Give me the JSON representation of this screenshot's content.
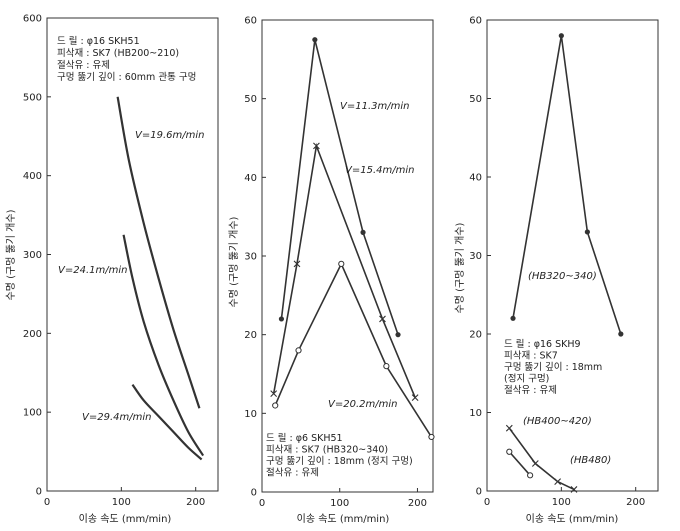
{
  "chart_data": [
    {
      "type": "line",
      "ylabel": "수명 (구멍 뚫기 개수)",
      "xlabel": "이송 속도 (mm/min)",
      "xlim": [
        0,
        230
      ],
      "ylim": [
        0,
        600
      ],
      "xticks": [
        "0",
        "100",
        "200"
      ],
      "yticks": [
        "0",
        "100",
        "200",
        "300",
        "400",
        "500",
        "600"
      ],
      "notes": [
        "드   릴 : φ16 SKH51",
        "피삭재 : SK7 (HB200~210)",
        "절삭유 : 유제",
        "구멍 뚫기 깊이 : 60mm 관통 구멍"
      ],
      "series": [
        {
          "name": "V=19.6m/min",
          "x": [
            95,
            110,
            130,
            150,
            170,
            190,
            205
          ],
          "y": [
            500,
            420,
            340,
            270,
            205,
            148,
            105
          ]
        },
        {
          "name": "V=24.1m/min",
          "x": [
            103,
            115,
            130,
            150,
            170,
            190,
            210
          ],
          "y": [
            325,
            270,
            215,
            160,
            115,
            75,
            45
          ]
        },
        {
          "name": "V=29.4m/min",
          "x": [
            115,
            130,
            150,
            170,
            190,
            208
          ],
          "y": [
            135,
            115,
            95,
            75,
            55,
            40
          ]
        }
      ]
    },
    {
      "type": "line",
      "ylabel": "수명 (구멍 뚫기 개수)",
      "xlabel": "이송 속도 (mm/min)",
      "xlim": [
        0,
        220
      ],
      "ylim": [
        0,
        60
      ],
      "xticks": [
        "0",
        "100",
        "200"
      ],
      "yticks": [
        "0",
        "10",
        "20",
        "30",
        "40",
        "50",
        "60"
      ],
      "notes": [
        "드   릴 : φ6 SKH51",
        "피삭재 : SK7 (HB320~340)",
        "구멍 뚫기 깊이 : 18mm (정지 구멍)",
        "절삭유 : 유제"
      ],
      "series": [
        {
          "name": "V=11.3m/min",
          "marker": "dot",
          "x": [
            25,
            68,
            130,
            175
          ],
          "y": [
            22,
            57.5,
            33,
            20
          ]
        },
        {
          "name": "V=15.4m/min",
          "marker": "x",
          "x": [
            15,
            45,
            70,
            155,
            197
          ],
          "y": [
            12.5,
            29,
            44,
            22,
            12
          ]
        },
        {
          "name": "V=20.2m/min",
          "marker": "circle",
          "x": [
            17,
            47,
            102,
            160,
            218
          ],
          "y": [
            11,
            18,
            29,
            16,
            7
          ]
        }
      ]
    },
    {
      "type": "line",
      "ylabel": "수명 (구멍 뚫기 개수)",
      "xlabel": "이송 속도 (mm/min)",
      "xlim": [
        0,
        230
      ],
      "ylim": [
        0,
        60
      ],
      "xticks": [
        "0",
        "100",
        "200"
      ],
      "yticks": [
        "0",
        "10",
        "20",
        "30",
        "40",
        "50",
        "60"
      ],
      "notes": [
        "드   릴 : φ16 SKH9",
        "피삭재 : SK7",
        "구멍 뚫기 깊이 : 18mm",
        "(정지 구멍)",
        "절삭유 : 유제"
      ],
      "series": [
        {
          "name": "(HB320~340)",
          "marker": "dot",
          "x": [
            35,
            100,
            135,
            180
          ],
          "y": [
            22,
            58,
            33,
            20
          ]
        },
        {
          "name": "(HB400~420)",
          "marker": "x",
          "x": [
            30,
            65,
            95,
            117
          ],
          "y": [
            8,
            3.5,
            1.2,
            0.2
          ]
        },
        {
          "name": "(HB480)",
          "marker": "circle",
          "x": [
            30,
            58
          ],
          "y": [
            5,
            2
          ]
        }
      ]
    }
  ]
}
